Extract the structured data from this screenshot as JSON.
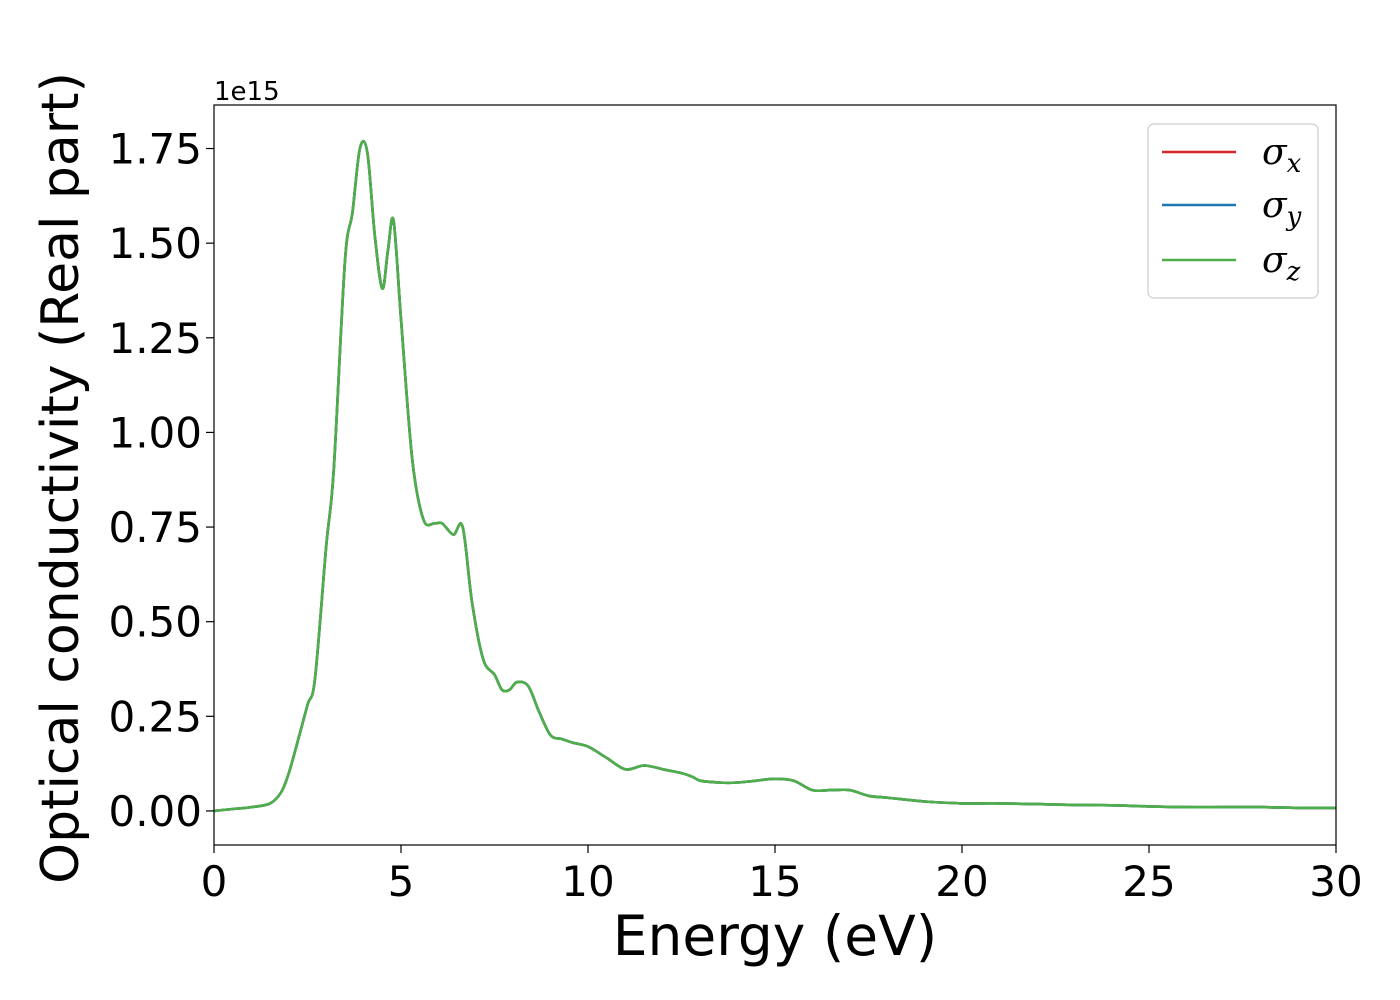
{
  "chart_data": {
    "type": "line",
    "title": "",
    "xlabel": "Energy (eV)",
    "ylabel": "Optical conductivity (Real part)",
    "y_offset_label": "1e15",
    "xlim": [
      0,
      30
    ],
    "ylim": [
      -0.09,
      1.865
    ],
    "xticks": [
      0,
      5,
      10,
      15,
      20,
      25,
      30
    ],
    "xtick_labels": [
      "0",
      "5",
      "10",
      "15",
      "20",
      "25",
      "30"
    ],
    "yticks": [
      0.0,
      0.25,
      0.5,
      0.75,
      1.0,
      1.25,
      1.5,
      1.75
    ],
    "ytick_labels": [
      "0.00",
      "0.25",
      "0.50",
      "0.75",
      "1.00",
      "1.25",
      "1.50",
      "1.75"
    ],
    "grid": false,
    "legend_position": "top-right",
    "series": [
      {
        "name": "σx",
        "sub": "x",
        "color": "#d62728"
      },
      {
        "name": "σy",
        "sub": "y",
        "color": "#1f77b4"
      },
      {
        "name": "σz",
        "sub": "z",
        "color": "#4daf4a"
      }
    ],
    "x": [
      0,
      0.5,
      1.0,
      1.5,
      1.8,
      2.0,
      2.2,
      2.5,
      2.7,
      3.0,
      3.2,
      3.5,
      3.7,
      3.9,
      4.1,
      4.3,
      4.5,
      4.65,
      4.8,
      5.0,
      5.3,
      5.6,
      5.9,
      6.1,
      6.4,
      6.65,
      6.9,
      7.2,
      7.5,
      7.7,
      7.9,
      8.1,
      8.4,
      8.7,
      9.0,
      9.3,
      9.6,
      10.0,
      10.5,
      11.0,
      11.5,
      12.0,
      12.5,
      12.8,
      13.0,
      13.5,
      14.0,
      14.5,
      15.0,
      15.5,
      16.0,
      16.5,
      17.0,
      17.5,
      18.0,
      19.0,
      20.0,
      21.0,
      22.0,
      23.0,
      24.0,
      25.0,
      26.0,
      27.0,
      28.0,
      29.0,
      30.0
    ],
    "values": [
      0.0,
      0.005,
      0.01,
      0.02,
      0.05,
      0.1,
      0.17,
      0.28,
      0.35,
      0.7,
      0.9,
      1.45,
      1.58,
      1.75,
      1.74,
      1.52,
      1.38,
      1.48,
      1.56,
      1.3,
      0.93,
      0.77,
      0.76,
      0.76,
      0.73,
      0.75,
      0.55,
      0.4,
      0.36,
      0.32,
      0.32,
      0.34,
      0.33,
      0.26,
      0.2,
      0.19,
      0.18,
      0.17,
      0.14,
      0.11,
      0.12,
      0.11,
      0.1,
      0.09,
      0.08,
      0.075,
      0.075,
      0.08,
      0.085,
      0.08,
      0.055,
      0.055,
      0.055,
      0.04,
      0.035,
      0.025,
      0.02,
      0.02,
      0.018,
      0.016,
      0.015,
      0.012,
      0.01,
      0.01,
      0.01,
      0.008,
      0.008
    ]
  }
}
